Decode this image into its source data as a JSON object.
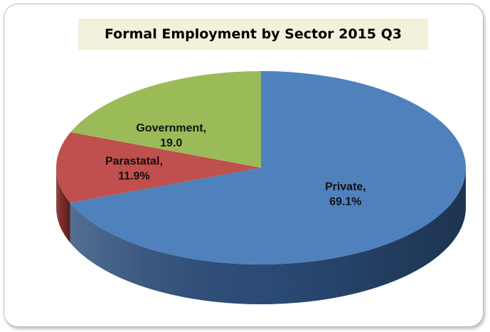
{
  "chart_data": {
    "type": "pie",
    "title": "Formal Employment by Sector 2015 Q3",
    "slices": [
      {
        "category": "Private",
        "value": 69.1,
        "label_line1": "Private,",
        "label_line2": "69.1%",
        "color": "#4f81bd",
        "side_color": "#2d4f7c"
      },
      {
        "category": "Parastatal",
        "value": 11.9,
        "label_line1": "Parastatal,",
        "label_line2": "11.9%",
        "color": "#c0504d",
        "side_color": "#7e2c2a"
      },
      {
        "category": "Government",
        "value": 19.0,
        "label_line1": "Government,",
        "label_line2": "19.0",
        "color": "#9bbb59",
        "side_color": "#5f7a2e"
      }
    ],
    "legend": "none"
  }
}
